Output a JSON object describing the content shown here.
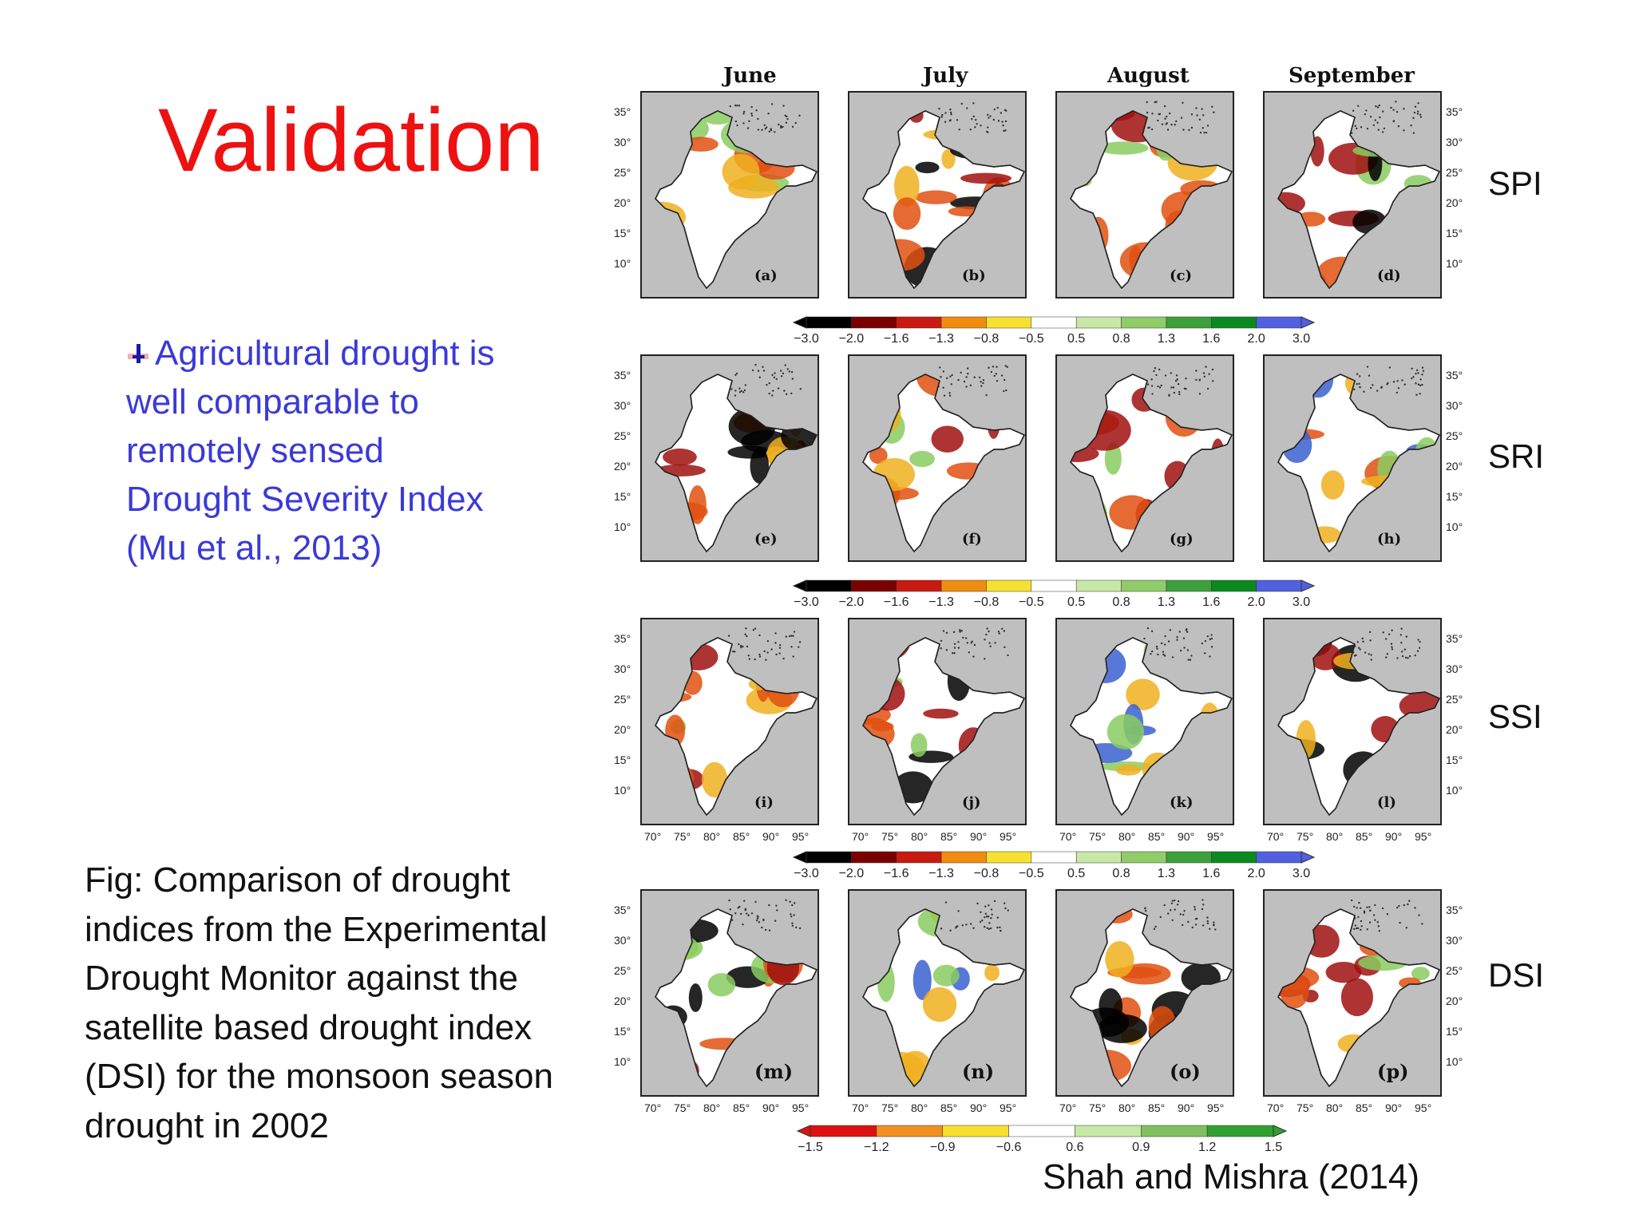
{
  "title": "Validation",
  "bullet": {
    "icon": "bullet-pin-icon",
    "lines": [
      "Agricultural drought is",
      "well comparable to",
      "remotely sensed",
      "Drought Severity Index",
      "(Mu et al., 2013)"
    ]
  },
  "caption": {
    "lines": [
      "Fig: Comparison of drought",
      "indices from the Experimental",
      "Drought Monitor against the",
      "satellite based drought index",
      "(DSI) for the monsoon season",
      "drought in 2002"
    ]
  },
  "citation": "Shah and Mishra (2014)",
  "figure": {
    "months": [
      "June",
      "July",
      "August",
      "September"
    ],
    "rows": [
      {
        "index": "SPI",
        "panels": [
          "(a)",
          "(b)",
          "(c)",
          "(d)"
        ]
      },
      {
        "index": "SRI",
        "panels": [
          "(e)",
          "(f)",
          "(g)",
          "(h)"
        ]
      },
      {
        "index": "SSI",
        "panels": [
          "(i)",
          "(j)",
          "(k)",
          "(l)"
        ]
      },
      {
        "index": "DSI",
        "panels": [
          "(m)",
          "(n)",
          "(o)",
          "(p)"
        ]
      }
    ],
    "lat_ticks": [
      "35°",
      "30°",
      "25°",
      "20°",
      "15°",
      "10°"
    ],
    "lon_ticks": [
      "70°",
      "75°",
      "80°",
      "85°",
      "90°",
      "95°"
    ],
    "colorbar_standard": {
      "ticks": [
        "−3.0",
        "−2.0",
        "−1.6",
        "−1.3",
        "−0.8",
        "−0.5",
        "0.5",
        "0.8",
        "1.3",
        "1.6",
        "2.0",
        "3.0"
      ],
      "colors": [
        "#000000",
        "#7a0000",
        "#c81a10",
        "#f08c10",
        "#f8e030",
        "#ffffff",
        "#c8e8a8",
        "#90cc68",
        "#3ca03c",
        "#0a8a20",
        "#5060e0"
      ]
    },
    "colorbar_dsi": {
      "ticks": [
        "−1.5",
        "−1.2",
        "−0.9",
        "−0.6",
        "0.6",
        "0.9",
        "1.2",
        "1.5"
      ],
      "colors": [
        "#dd1111",
        "#f09020",
        "#f8e030",
        "#ffffff",
        "#c8e8a8",
        "#80c060",
        "#30a030"
      ]
    },
    "map_colors": {
      "land_bg": "#ffffff",
      "ocean_bg": "#bfbfbf",
      "extreme": "#000000",
      "severe": "#a01010",
      "moderate": "#e05010",
      "mild": "#f0b020",
      "wet": "#8acc60",
      "very_wet": "#3aa040",
      "extreme_wet": "#3a60d0"
    }
  }
}
